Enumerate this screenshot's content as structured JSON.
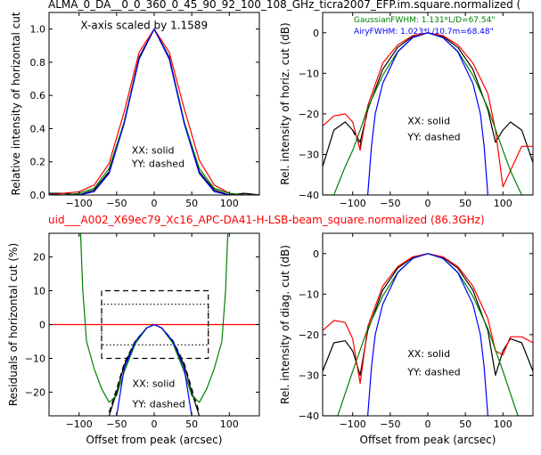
{
  "figure": {
    "top_title": "ALMA_0_DA__0_0_360_0_45_90_92_100_108_GHz_ticra2007_EFP.im.square.normalized (",
    "mid_title": "uid___A002_X69ec79_Xc16_APC-DA41-H-LSB-beam_square.normalized (86.3GHz)",
    "mid_title_color": "#ff0000"
  },
  "chart_data": [
    {
      "type": "line",
      "xlabel": "",
      "ylabel": "Relative intensity of horizontal cut",
      "xlim": [
        -140,
        140
      ],
      "ylim": [
        0,
        1.1
      ],
      "xticks": [
        -100,
        -50,
        0,
        50,
        100
      ],
      "xtick_labels": [
        "−100",
        "−50",
        "0",
        "50",
        "100"
      ],
      "yticks": [
        0.0,
        0.2,
        0.4,
        0.6,
        0.8,
        1.0
      ],
      "ytick_labels": [
        "0.0",
        "0.2",
        "0.4",
        "0.6",
        "0.8",
        "1.0"
      ],
      "annotations": [
        "X-axis scaled by 1.1589",
        "XX: solid",
        "YY: dashed"
      ],
      "series": [
        {
          "color": "#000000",
          "style": "solid",
          "x": [
            -140,
            -120,
            -100,
            -80,
            -60,
            -40,
            -20,
            0,
            20,
            40,
            60,
            80,
            100,
            120,
            140
          ],
          "y": [
            0.01,
            0.01,
            0.0,
            0.03,
            0.14,
            0.44,
            0.83,
            1.0,
            0.83,
            0.44,
            0.14,
            0.03,
            0.0,
            0.01,
            0.0
          ]
        },
        {
          "color": "#000000",
          "style": "dashed",
          "x": [
            -140,
            -120,
            -100,
            -80,
            -60,
            -40,
            -20,
            0,
            20,
            40,
            60,
            80,
            100,
            120,
            140
          ],
          "y": [
            0.01,
            0.01,
            0.0,
            0.03,
            0.14,
            0.44,
            0.83,
            1.0,
            0.83,
            0.44,
            0.14,
            0.03,
            0.0,
            0.01,
            0.0
          ]
        },
        {
          "color": "#ff0000",
          "style": "solid",
          "x": [
            -140,
            -120,
            -100,
            -80,
            -60,
            -40,
            -20,
            0,
            20,
            40,
            60,
            80,
            100,
            120,
            140
          ],
          "y": [
            0.0,
            0.01,
            0.02,
            0.06,
            0.19,
            0.5,
            0.86,
            1.0,
            0.86,
            0.52,
            0.21,
            0.06,
            0.01,
            0.0,
            0.0
          ]
        },
        {
          "color": "#008000",
          "style": "solid",
          "x": [
            -140,
            -120,
            -100,
            -80,
            -60,
            -40,
            -20,
            0,
            20,
            40,
            60,
            80,
            100,
            120,
            140
          ],
          "y": [
            0.0,
            0.0,
            0.01,
            0.04,
            0.16,
            0.44,
            0.82,
            1.0,
            0.82,
            0.44,
            0.16,
            0.04,
            0.01,
            0.0,
            0.0
          ]
        },
        {
          "color": "#0000ff",
          "style": "solid",
          "x": [
            -140,
            -120,
            -100,
            -80,
            -60,
            -40,
            -20,
            0,
            20,
            40,
            60,
            80,
            100,
            120,
            140
          ],
          "y": [
            0.0,
            0.0,
            0.0,
            0.02,
            0.13,
            0.43,
            0.82,
            1.0,
            0.82,
            0.43,
            0.13,
            0.02,
            0.0,
            0.0,
            0.0
          ]
        }
      ]
    },
    {
      "type": "line",
      "xlabel": "",
      "ylabel": "Rel. intensity of horiz. cut (dB)",
      "xlim": [
        -140,
        140
      ],
      "ylim": [
        -40,
        5
      ],
      "xticks": [
        -100,
        -50,
        0,
        50,
        100
      ],
      "xtick_labels": [
        "−100",
        "−50",
        "0",
        "50",
        "100"
      ],
      "yticks": [
        -40,
        -30,
        -20,
        -10,
        0
      ],
      "ytick_labels": [
        "−40",
        "−30",
        "−20",
        "−10",
        "0"
      ],
      "legend_text": [
        "GaussianFWHM: 1.131*L/D=67.54\"",
        "AiryFWHM: 1.023*L/10.7m=68.48\""
      ],
      "legend_colors": [
        "#008000",
        "#0000ff"
      ],
      "annotations": [
        "XX: solid",
        "YY: dashed"
      ],
      "series": [
        {
          "color": "#000000",
          "style": "solid",
          "x": [
            -140,
            -125,
            -110,
            -100,
            -90,
            -80,
            -60,
            -40,
            -20,
            0,
            20,
            40,
            60,
            80,
            90,
            100,
            110,
            125,
            140
          ],
          "y": [
            -33,
            -24,
            -22,
            -24,
            -27,
            -19,
            -9,
            -3.6,
            -0.9,
            0,
            -0.9,
            -3.6,
            -9,
            -19,
            -27,
            -24,
            -22,
            -24,
            -32
          ]
        },
        {
          "color": "#000000",
          "style": "dashed",
          "x": [
            -100,
            -90,
            -80
          ],
          "y": [
            -24,
            -28,
            -19
          ]
        },
        {
          "color": "#ff0000",
          "style": "solid",
          "x": [
            -140,
            -125,
            -110,
            -100,
            -90,
            -80,
            -60,
            -40,
            -20,
            0,
            20,
            40,
            60,
            80,
            90,
            100,
            110,
            125,
            140
          ],
          "y": [
            -23,
            -20.5,
            -20,
            -22,
            -29,
            -18,
            -7.5,
            -3,
            -0.7,
            0,
            -0.7,
            -3,
            -7.5,
            -15,
            -24,
            -38,
            -34,
            -28,
            -28
          ]
        },
        {
          "color": "#008000",
          "style": "solid",
          "x": [
            -140,
            -125,
            -110,
            -100,
            -90,
            -80,
            -60,
            -40,
            -20,
            0,
            20,
            40,
            60,
            80,
            100,
            110,
            125,
            140
          ],
          "y": [
            -40,
            -40,
            -33,
            -29,
            -24,
            -18.5,
            -10.5,
            -4.6,
            -1.2,
            0,
            -1.2,
            -4.6,
            -10.5,
            -18.5,
            -29,
            -34,
            -40,
            -40
          ]
        },
        {
          "color": "#0000ff",
          "style": "solid",
          "x": [
            -80,
            -75,
            -70,
            -60,
            -40,
            -20,
            0,
            20,
            40,
            60,
            70,
            75,
            80
          ],
          "y": [
            -40,
            -28,
            -20,
            -12.5,
            -4.7,
            -1.2,
            0,
            -1.2,
            -4.7,
            -12.5,
            -20,
            -28,
            -40
          ]
        }
      ]
    },
    {
      "type": "line",
      "xlabel": "Offset from peak (arcsec)",
      "ylabel": "Residuals of horizontal cut (%)",
      "xlim": [
        -140,
        140
      ],
      "ylim": [
        -27,
        27
      ],
      "xticks": [
        -100,
        -50,
        0,
        50,
        100
      ],
      "xtick_labels": [
        "−100",
        "−50",
        "0",
        "50",
        "100"
      ],
      "yticks": [
        -20,
        -10,
        0,
        10,
        20
      ],
      "ytick_labels": [
        "−20",
        "−10",
        "0",
        "10",
        "20"
      ],
      "annotations": [
        "XX: solid",
        "YY: dashed"
      ],
      "series": [
        {
          "color": "#ff0000",
          "style": "solid",
          "x": [
            -140,
            140
          ],
          "y": [
            0,
            0
          ]
        },
        {
          "color": "#000000",
          "style": "dashed",
          "name": "",
          "x": [
            -70,
            -70,
            72,
            72,
            -70
          ],
          "y": [
            -10,
            10,
            10,
            -10,
            -10
          ]
        },
        {
          "color": "#000000",
          "style": "dotted",
          "x": [
            -70,
            -70,
            72,
            72,
            -70
          ],
          "y": [
            -6,
            6,
            6,
            -6,
            -6
          ]
        },
        {
          "color": "#000000",
          "style": "solid",
          "x": [
            -60,
            -50,
            -40,
            -25,
            -10,
            0,
            10,
            25,
            40,
            50,
            60
          ],
          "y": [
            -27,
            -20,
            -12,
            -5,
            -1,
            0,
            -1,
            -5,
            -12,
            -20,
            -27
          ]
        },
        {
          "color": "#000000",
          "style": "dashed",
          "x": [
            -60,
            -50,
            -40,
            -25,
            -10,
            0,
            10,
            25,
            40,
            50,
            60
          ],
          "y": [
            -26,
            -19,
            -11.5,
            -4.8,
            -1,
            0,
            -1,
            -4.8,
            -11.5,
            -19,
            -26
          ]
        },
        {
          "color": "#008000",
          "style": "solid",
          "x": [
            -98,
            -95,
            -90,
            -80,
            -70,
            -60,
            -50,
            -40,
            -25,
            -10,
            0,
            10,
            25,
            40,
            50,
            60,
            70,
            80,
            90,
            95,
            98
          ],
          "y": [
            27,
            10,
            -5,
            -13,
            -19,
            -23,
            -21,
            -14,
            -5.6,
            -1,
            0,
            -1,
            -5.6,
            -14,
            -21,
            -23,
            -19,
            -13,
            -5,
            10,
            27
          ]
        },
        {
          "color": "#0000ff",
          "style": "solid",
          "x": [
            -50,
            -40,
            -25,
            -10,
            0,
            10,
            25,
            40,
            50
          ],
          "y": [
            -27,
            -13,
            -5,
            -1,
            0,
            -1,
            -5,
            -13,
            -27
          ]
        }
      ]
    },
    {
      "type": "line",
      "xlabel": "Offset from peak (arcsec)",
      "ylabel": "Rel. intensity of diag. cut (dB)",
      "xlim": [
        -140,
        140
      ],
      "ylim": [
        -40,
        5
      ],
      "xticks": [
        -100,
        -50,
        0,
        50,
        100
      ],
      "xtick_labels": [
        "−100",
        "−50",
        "0",
        "50",
        "100"
      ],
      "yticks": [
        -40,
        -30,
        -20,
        -10,
        0
      ],
      "ytick_labels": [
        "−40",
        "−30",
        "−20",
        "−10",
        "0"
      ],
      "annotations": [
        "XX: solid",
        "YY: dashed"
      ],
      "series": [
        {
          "color": "#000000",
          "style": "solid",
          "x": [
            -140,
            -125,
            -110,
            -100,
            -90,
            -80,
            -60,
            -40,
            -20,
            0,
            20,
            40,
            60,
            80,
            90,
            100,
            110,
            125,
            140
          ],
          "y": [
            -29,
            -22,
            -21.5,
            -24,
            -30,
            -19,
            -9,
            -3.6,
            -0.9,
            0,
            -0.9,
            -3.6,
            -9,
            -19,
            -30,
            -24,
            -21,
            -22,
            -29
          ]
        },
        {
          "color": "#ff0000",
          "style": "solid",
          "x": [
            -140,
            -125,
            -110,
            -100,
            -90,
            -80,
            -60,
            -40,
            -20,
            0,
            20,
            40,
            60,
            80,
            90,
            100,
            110,
            125,
            140
          ],
          "y": [
            -19,
            -16.5,
            -17,
            -21,
            -32,
            -18,
            -8,
            -3.2,
            -0.8,
            0,
            -0.8,
            -3.2,
            -8,
            -16,
            -24,
            -25,
            -20.5,
            -20.5,
            -22
          ]
        },
        {
          "color": "#008000",
          "style": "solid",
          "x": [
            -140,
            -120,
            -100,
            -80,
            -60,
            -40,
            -20,
            0,
            20,
            40,
            60,
            80,
            100,
            120,
            140
          ],
          "y": [
            -40,
            -40,
            -29,
            -18.5,
            -10.5,
            -4.6,
            -1.2,
            0,
            -1.2,
            -4.6,
            -10.5,
            -18.5,
            -29,
            -40,
            -40
          ]
        },
        {
          "color": "#0000ff",
          "style": "solid",
          "x": [
            -80,
            -75,
            -70,
            -60,
            -40,
            -20,
            0,
            20,
            40,
            60,
            70,
            75,
            80
          ],
          "y": [
            -40,
            -28,
            -20,
            -12.5,
            -4.7,
            -1.2,
            0,
            -1.2,
            -4.7,
            -12.5,
            -20,
            -28,
            -40
          ]
        }
      ]
    }
  ]
}
